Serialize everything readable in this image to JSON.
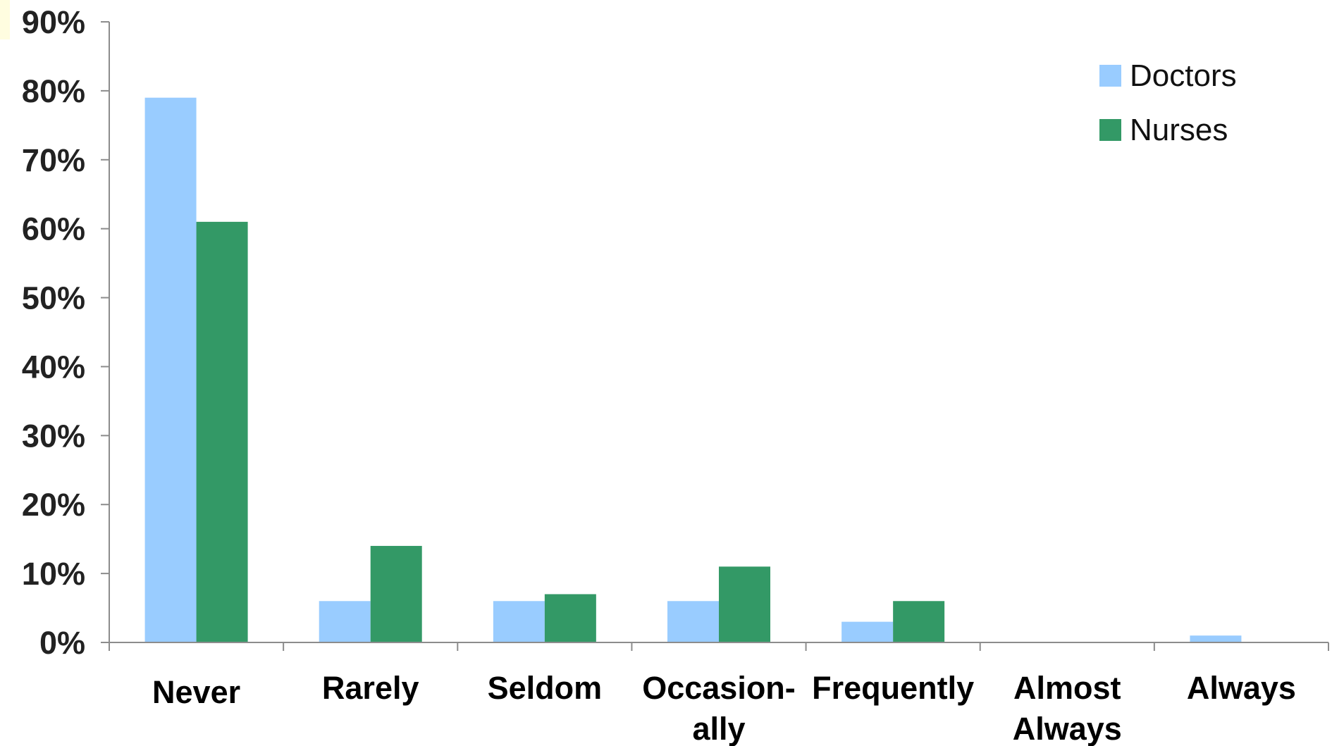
{
  "chart_data": {
    "type": "bar",
    "categories": [
      [
        "Never"
      ],
      [
        "Rarely"
      ],
      [
        "Seldom"
      ],
      [
        "Occasion-",
        "ally"
      ],
      [
        "Frequently"
      ],
      [
        "Almost",
        "Always"
      ],
      [
        "Always"
      ]
    ],
    "series": [
      {
        "name": "Doctors",
        "color": "#99ccff",
        "values": [
          79,
          6,
          6,
          6,
          3,
          0,
          1
        ]
      },
      {
        "name": "Nurses",
        "color": "#339966",
        "values": [
          61,
          14,
          7,
          11,
          6,
          0,
          0
        ]
      }
    ],
    "ylim": [
      0,
      90
    ],
    "yticks": [
      0,
      10,
      20,
      30,
      40,
      50,
      60,
      70,
      80,
      90
    ],
    "ytick_labels": [
      "0%",
      "10%",
      "20%",
      "30%",
      "40%",
      "50%",
      "60%",
      "70%",
      "80%",
      "90%"
    ],
    "xlabel": "",
    "ylabel": "",
    "legend_position": "top-right",
    "grid": false
  }
}
